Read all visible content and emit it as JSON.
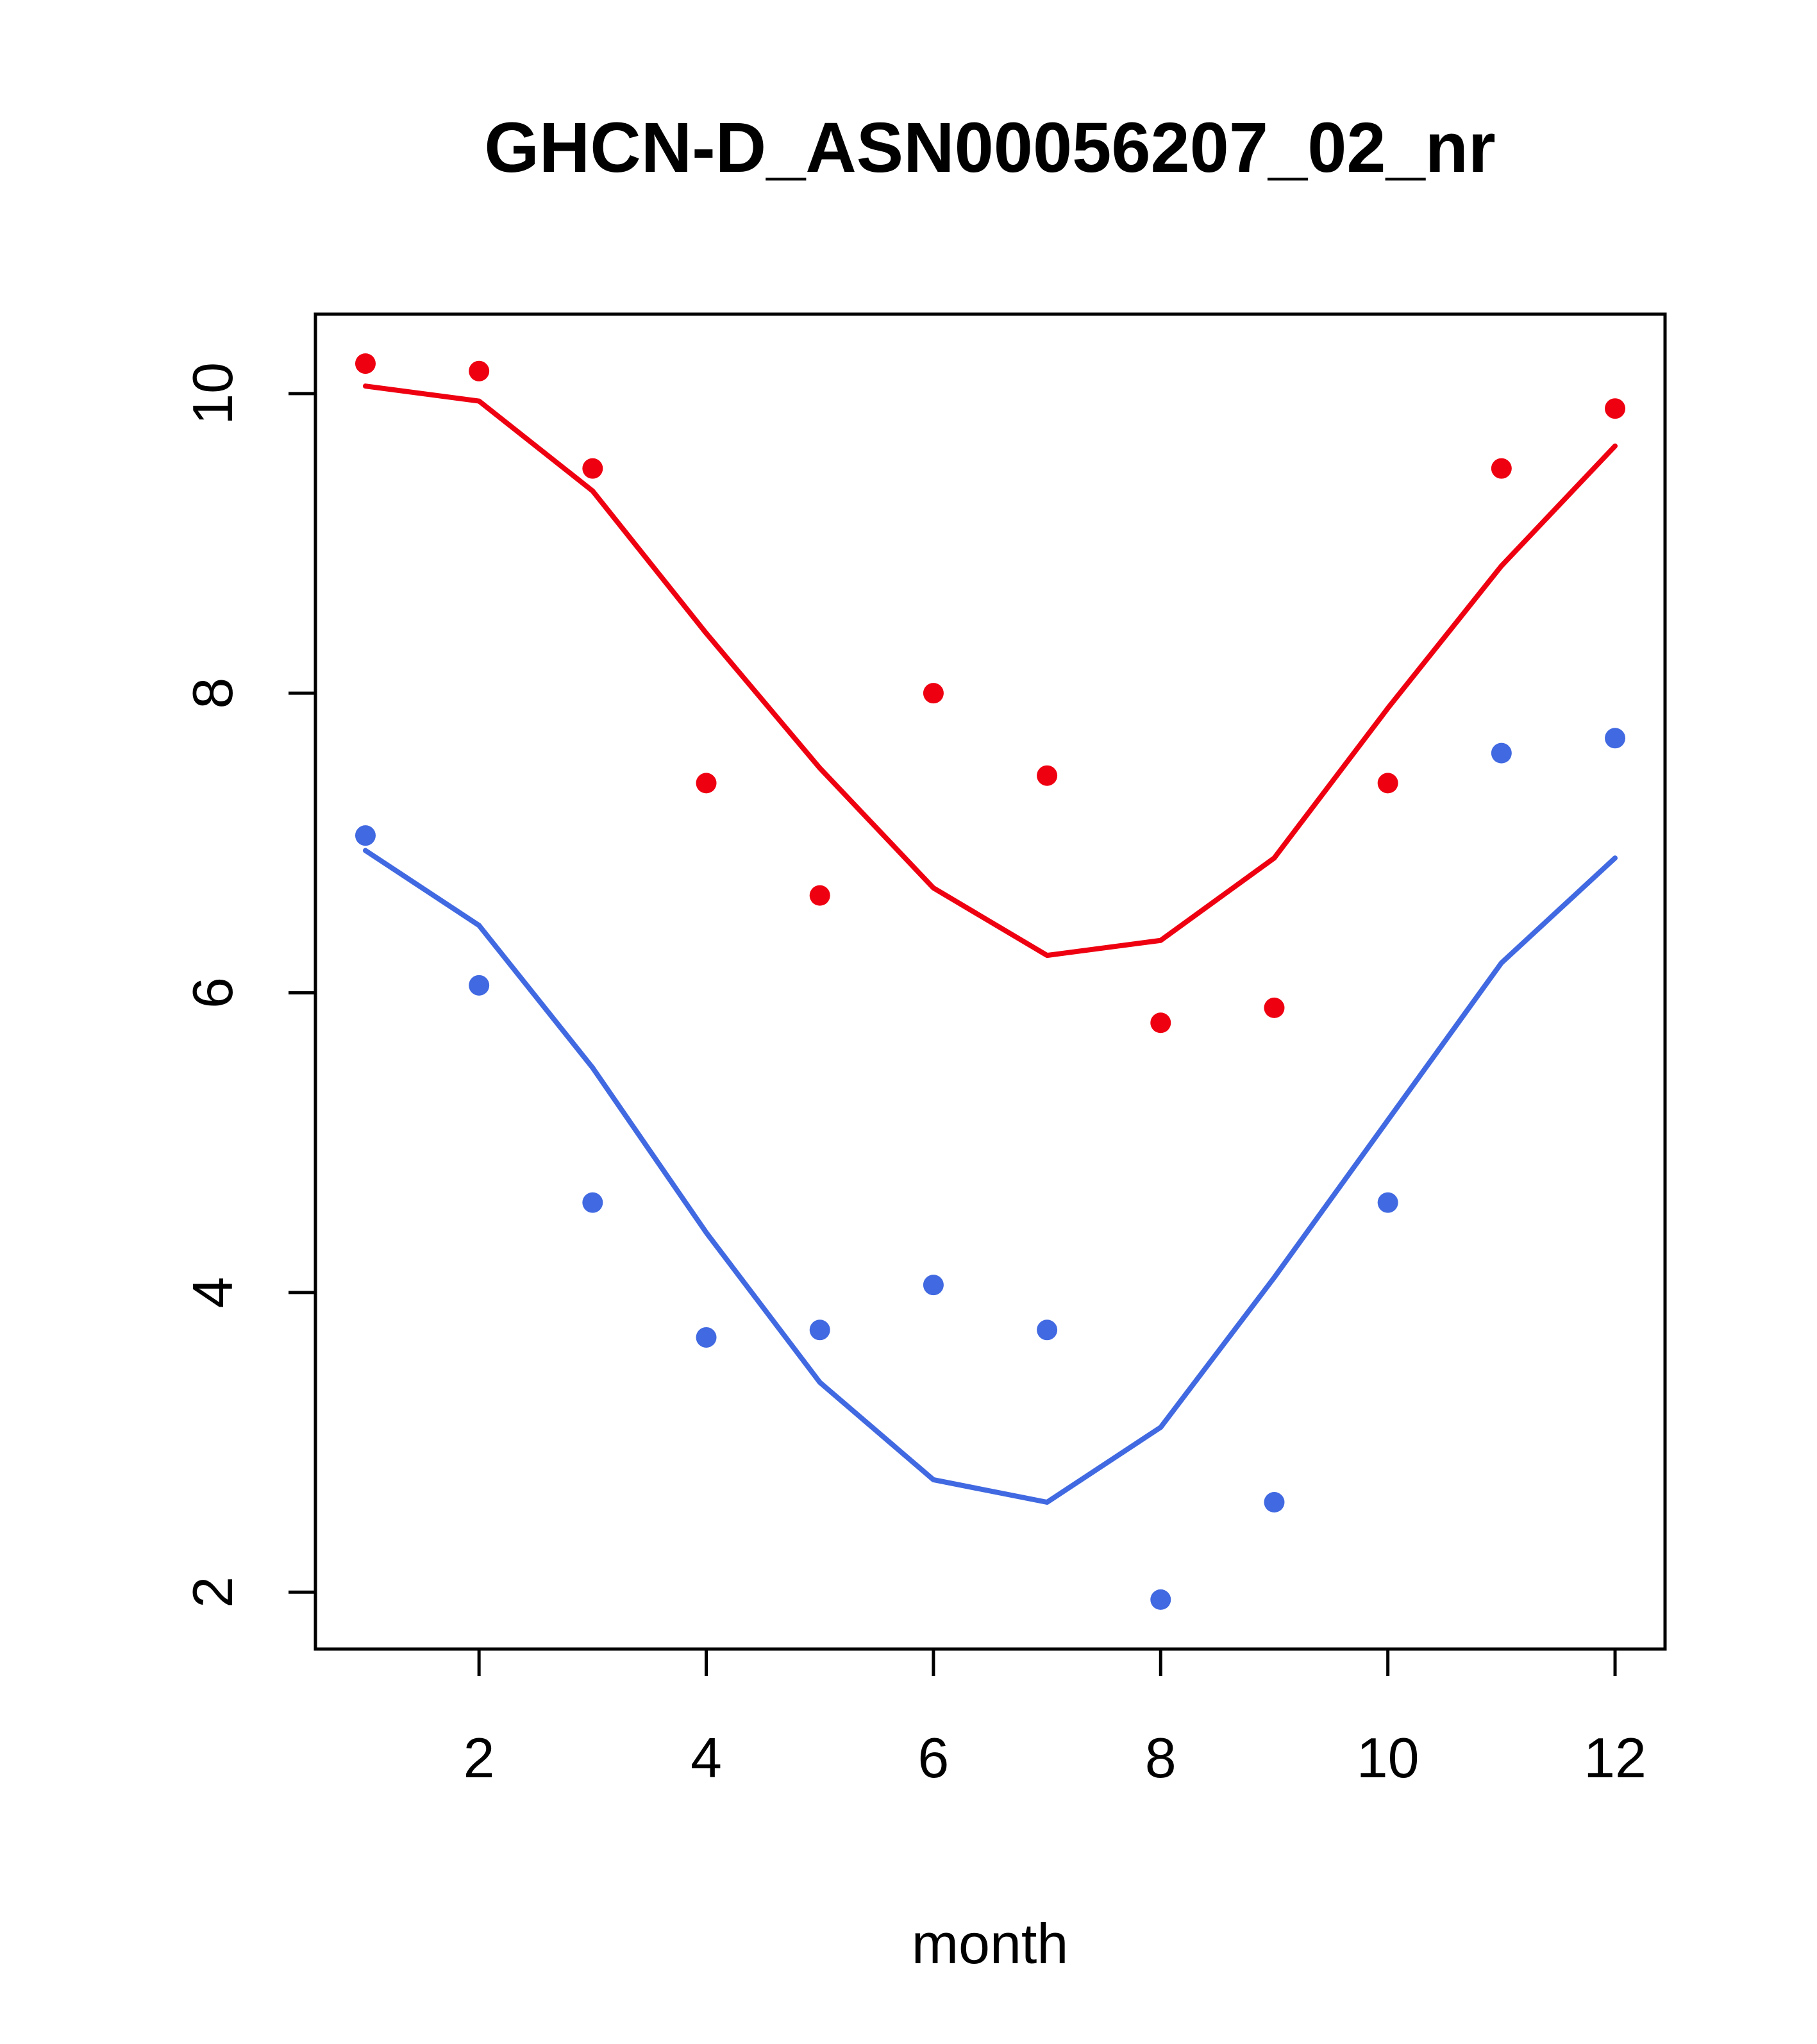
{
  "chart_data": {
    "type": "scatter",
    "title": "GHCN-D_ASN00056207_02_nr",
    "xlabel": "month",
    "ylabel": "",
    "xlim": [
      0.56,
      12.44
    ],
    "ylim": [
      1.62,
      10.53
    ],
    "x_ticks": [
      2,
      4,
      6,
      8,
      10,
      12
    ],
    "y_ticks": [
      2,
      4,
      6,
      8,
      10
    ],
    "x": [
      1,
      2,
      3,
      4,
      5,
      6,
      7,
      8,
      9,
      10,
      11,
      12
    ],
    "grid": false,
    "legend": "none",
    "colors": {
      "red": "#ee0011",
      "blue": "#4169e1"
    },
    "series": [
      {
        "name": "red-points",
        "kind": "points",
        "color": "#ee0011",
        "values": [
          10.2,
          10.15,
          9.5,
          7.4,
          6.65,
          8.0,
          7.45,
          5.8,
          5.9,
          7.4,
          9.5,
          9.9
        ]
      },
      {
        "name": "red-smooth-line",
        "kind": "line",
        "color": "#ee0011",
        "values": [
          10.05,
          9.95,
          9.35,
          8.4,
          7.5,
          6.7,
          6.25,
          6.35,
          6.9,
          7.9,
          8.85,
          9.65
        ]
      },
      {
        "name": "blue-points",
        "kind": "points",
        "color": "#4169e1",
        "values": [
          7.05,
          6.05,
          4.6,
          3.7,
          3.75,
          4.05,
          3.75,
          1.95,
          2.6,
          4.6,
          7.6,
          7.7
        ]
      },
      {
        "name": "blue-smooth-line",
        "kind": "line",
        "color": "#4169e1",
        "values": [
          6.95,
          6.45,
          5.5,
          4.4,
          3.4,
          2.75,
          2.6,
          3.1,
          4.1,
          5.15,
          6.2,
          6.9
        ]
      }
    ]
  }
}
